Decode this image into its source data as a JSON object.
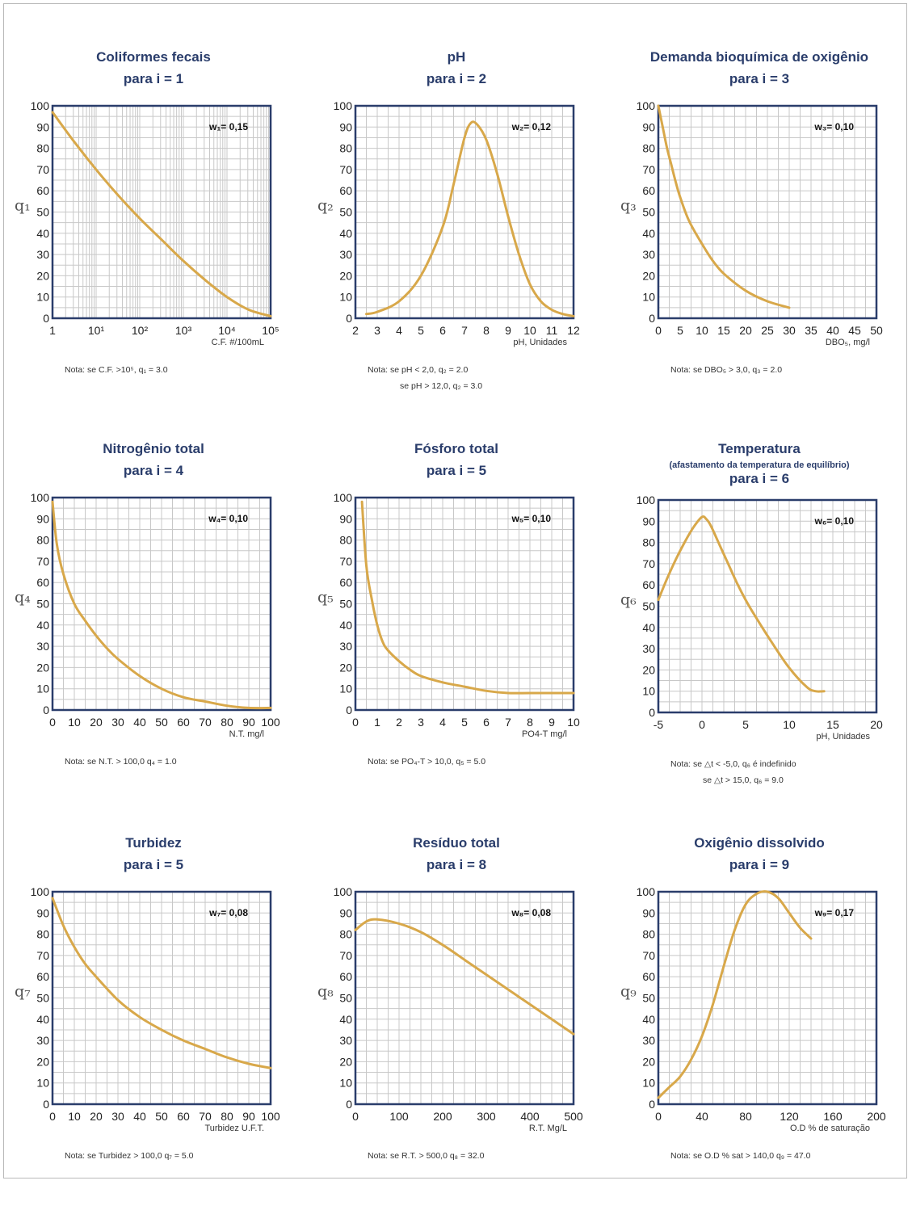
{
  "colors": {
    "curve": "#d8a84a",
    "frame": "#2a3d6b",
    "grid": "#c8c8c8",
    "title": "#2a3d6b"
  },
  "charts": [
    {
      "id": "p1",
      "title": "Coliformes fecais",
      "title2": "para i = 1",
      "subtitle": "",
      "weight": "w₁= 0,15",
      "ylabel": "q₁",
      "xlabel": "C.F. #/100mL",
      "notes": [
        "Nota: se C.F. >10⁵, q₁ = 3.0"
      ],
      "yticks": [
        "0",
        "10",
        "20",
        "30",
        "40",
        "50",
        "60",
        "70",
        "80",
        "90",
        "100"
      ],
      "xticks": [
        "1",
        "10¹",
        "10²",
        "10³",
        "10⁴",
        "10⁵"
      ]
    },
    {
      "id": "p2",
      "title": "pH",
      "title2": "para i = 2",
      "subtitle": "",
      "weight": "w₂= 0,12",
      "ylabel": "q₂",
      "xlabel": "pH, Unidades",
      "notes": [
        "Nota: se pH < 2,0, q₂ = 2.0",
        "se pH > 12,0, q₂ = 3.0"
      ],
      "yticks": [
        "0",
        "10",
        "20",
        "30",
        "40",
        "50",
        "60",
        "70",
        "80",
        "90",
        "100"
      ],
      "xticks": [
        "2",
        "3",
        "4",
        "5",
        "6",
        "7",
        "8",
        "9",
        "10",
        "11",
        "12"
      ]
    },
    {
      "id": "p3",
      "title": "Demanda bioquímica de oxigênio",
      "title2": "para i = 3",
      "subtitle": "",
      "weight": "w₃= 0,10",
      "ylabel": "q₃",
      "xlabel": "DBO₅, mg/l",
      "notes": [
        "Nota: se DBO₅ > 3,0, q₃ = 2.0"
      ],
      "yticks": [
        "0",
        "10",
        "20",
        "30",
        "40",
        "50",
        "60",
        "70",
        "80",
        "90",
        "100"
      ],
      "xticks": [
        "0",
        "5",
        "10",
        "15",
        "20",
        "25",
        "30",
        "35",
        "40",
        "45",
        "50"
      ]
    },
    {
      "id": "p4",
      "title": "Nitrogênio total",
      "title2": "para i = 4",
      "subtitle": "",
      "weight": "w₄= 0,10",
      "ylabel": "q₄",
      "xlabel": "N.T. mg/l",
      "notes": [
        "Nota: se N.T. > 100,0  q₄ = 1.0"
      ],
      "yticks": [
        "0",
        "10",
        "20",
        "30",
        "40",
        "50",
        "60",
        "70",
        "80",
        "90",
        "100"
      ],
      "xticks": [
        "0",
        "10",
        "20",
        "30",
        "40",
        "50",
        "60",
        "70",
        "80",
        "90",
        "100"
      ]
    },
    {
      "id": "p5",
      "title": "Fósforo total",
      "title2": "para i = 5",
      "subtitle": "",
      "weight": "w₅= 0,10",
      "ylabel": "q₅",
      "xlabel": "PO4-T mg/l",
      "notes": [
        "Nota: se PO₄-T > 10,0, q₅ = 5.0"
      ],
      "yticks": [
        "0",
        "10",
        "20",
        "30",
        "40",
        "50",
        "60",
        "70",
        "80",
        "90",
        "100"
      ],
      "xticks": [
        "0",
        "1",
        "2",
        "3",
        "4",
        "5",
        "6",
        "7",
        "8",
        "9",
        "10"
      ]
    },
    {
      "id": "p6",
      "title": "Temperatura",
      "title2": "para i = 6",
      "subtitle": "(afastamento da temperatura de equilíbrio)",
      "weight": "w₆= 0,10",
      "ylabel": "q₆",
      "xlabel": "pH, Unidades",
      "notes": [
        "Nota: se △t < -5,0, q₆ é indefinido",
        "se △t > 15,0, q₆ = 9.0"
      ],
      "yticks": [
        "0",
        "10",
        "20",
        "30",
        "40",
        "50",
        "60",
        "70",
        "80",
        "90",
        "100"
      ],
      "xticks": [
        "-5",
        "0",
        "5",
        "10",
        "15",
        "20"
      ]
    },
    {
      "id": "p7",
      "title": "Turbidez",
      "title2": "para i = 5",
      "subtitle": "",
      "weight": "w₇= 0,08",
      "ylabel": "q₇",
      "xlabel": "Turbidez U.F.T.",
      "notes": [
        "Nota: se Turbidez > 100,0  q₇ = 5.0"
      ],
      "yticks": [
        "0",
        "10",
        "20",
        "30",
        "40",
        "50",
        "60",
        "70",
        "80",
        "90",
        "100"
      ],
      "xticks": [
        "0",
        "10",
        "20",
        "30",
        "40",
        "50",
        "60",
        "70",
        "80",
        "90",
        "100"
      ]
    },
    {
      "id": "p8",
      "title": "Resíduo total",
      "title2": "para i = 8",
      "subtitle": "",
      "weight": "w₈= 0,08",
      "ylabel": "q₈",
      "xlabel": "R.T. Mg/L",
      "notes": [
        "Nota: se R.T. > 500,0  q₈ = 32.0"
      ],
      "yticks": [
        "0",
        "10",
        "20",
        "30",
        "40",
        "50",
        "60",
        "70",
        "80",
        "90",
        "100"
      ],
      "xticks": [
        "0",
        "100",
        "200",
        "300",
        "400",
        "500"
      ]
    },
    {
      "id": "p9",
      "title": "Oxigênio dissolvido",
      "title2": "para i = 9",
      "subtitle": "",
      "weight": "w₉= 0,17",
      "ylabel": "q₉",
      "xlabel": "O.D % de saturação",
      "notes": [
        "Nota: se O.D % sat > 140,0  q₉ = 47.0"
      ],
      "yticks": [
        "0",
        "10",
        "20",
        "30",
        "40",
        "50",
        "60",
        "70",
        "80",
        "90",
        "100"
      ],
      "xticks": [
        "0",
        "40",
        "80",
        "120",
        "160",
        "200"
      ]
    }
  ],
  "chart_data": [
    {
      "type": "line",
      "title": "Coliformes fecais para i = 1",
      "xlabel": "C.F. #/100mL",
      "ylabel": "q1",
      "xscale": "log",
      "xlim": [
        1,
        100000
      ],
      "ylim": [
        0,
        100
      ],
      "grid": true,
      "series": [
        {
          "x": [
            1,
            3.16,
            10,
            31.6,
            100,
            316,
            1000,
            3162,
            10000,
            31623,
            100000
          ],
          "y": [
            97,
            83,
            70,
            58,
            47,
            37,
            27,
            18,
            10,
            4,
            1
          ]
        }
      ]
    },
    {
      "type": "line",
      "title": "pH para i = 2",
      "xlabel": "pH, Unidades",
      "ylabel": "q2",
      "xlim": [
        2,
        12
      ],
      "ylim": [
        0,
        100
      ],
      "grid": true,
      "series": [
        {
          "x": [
            2.5,
            3,
            4,
            5,
            6,
            6.5,
            7,
            7.3,
            7.6,
            8,
            8.5,
            9,
            9.5,
            10,
            10.5,
            11,
            11.5,
            12
          ],
          "y": [
            2,
            3,
            8,
            20,
            43,
            63,
            85,
            92,
            91,
            84,
            68,
            48,
            30,
            16,
            8,
            4,
            2,
            1
          ]
        }
      ]
    },
    {
      "type": "line",
      "title": "Demanda bioquímica de oxigênio para i = 3",
      "xlabel": "DBO5, mg/l",
      "ylabel": "q3",
      "xlim": [
        0,
        50
      ],
      "ylim": [
        0,
        100
      ],
      "grid": true,
      "series": [
        {
          "x": [
            0,
            1,
            2,
            3,
            4,
            5,
            7,
            10,
            12.5,
            15,
            20,
            25,
            30
          ],
          "y": [
            100,
            90,
            80,
            72,
            64,
            57,
            46,
            35,
            27,
            21,
            13,
            8,
            5
          ]
        }
      ]
    },
    {
      "type": "line",
      "title": "Nitrogênio total para i = 4",
      "xlabel": "N.T. mg/l",
      "ylabel": "q4",
      "xlim": [
        0,
        100
      ],
      "ylim": [
        0,
        100
      ],
      "grid": true,
      "series": [
        {
          "x": [
            0,
            2,
            5,
            10,
            15,
            20,
            25,
            30,
            40,
            50,
            60,
            70,
            80,
            90,
            100
          ],
          "y": [
            98,
            78,
            64,
            50,
            42,
            35,
            29,
            24,
            16,
            10,
            6,
            4,
            2,
            1,
            1
          ]
        }
      ]
    },
    {
      "type": "line",
      "title": "Fósforo total para i = 5",
      "xlabel": "PO4-T mg/l",
      "ylabel": "q5",
      "xlim": [
        0,
        10
      ],
      "ylim": [
        0,
        100
      ],
      "grid": true,
      "series": [
        {
          "x": [
            0.3,
            0.5,
            0.75,
            1,
            1.25,
            1.5,
            2,
            2.5,
            3,
            4,
            5,
            6,
            7,
            8,
            9,
            10
          ],
          "y": [
            98,
            68,
            52,
            40,
            32,
            28,
            23,
            19,
            16,
            13,
            11,
            9,
            8,
            8,
            8,
            8
          ]
        }
      ]
    },
    {
      "type": "line",
      "title": "Temperatura para i = 6",
      "xlabel": "pH, Unidades",
      "ylabel": "q6",
      "xlim": [
        -5,
        20
      ],
      "ylim": [
        0,
        100
      ],
      "grid": true,
      "series": [
        {
          "x": [
            -5,
            -4,
            -3,
            -2,
            -1,
            0,
            0.5,
            1,
            2,
            3,
            4,
            5,
            6,
            8,
            10,
            12,
            13,
            14
          ],
          "y": [
            53,
            63,
            72,
            80,
            87,
            92,
            91,
            88,
            79,
            70,
            61,
            53,
            46,
            33,
            21,
            12,
            10,
            10
          ]
        }
      ]
    },
    {
      "type": "line",
      "title": "Turbidez para i = 5",
      "xlabel": "Turbidez U.F.T.",
      "ylabel": "q7",
      "xlim": [
        0,
        100
      ],
      "ylim": [
        0,
        100
      ],
      "grid": true,
      "series": [
        {
          "x": [
            0,
            5,
            10,
            15,
            20,
            30,
            40,
            50,
            60,
            70,
            80,
            90,
            100
          ],
          "y": [
            97,
            84,
            74,
            66,
            60,
            49,
            41,
            35,
            30,
            26,
            22,
            19,
            17
          ]
        }
      ]
    },
    {
      "type": "line",
      "title": "Resíduo total para i = 8",
      "xlabel": "R.T. Mg/L",
      "ylabel": "q8",
      "xlim": [
        0,
        500
      ],
      "ylim": [
        0,
        100
      ],
      "grid": true,
      "series": [
        {
          "x": [
            0,
            25,
            50,
            100,
            150,
            200,
            250,
            300,
            350,
            400,
            450,
            500
          ],
          "y": [
            82,
            86,
            87,
            85,
            81,
            75,
            68,
            61,
            54,
            47,
            40,
            33
          ]
        }
      ]
    },
    {
      "type": "line",
      "title": "Oxigênio dissolvido para i = 9",
      "xlabel": "O.D % de saturação",
      "ylabel": "q9",
      "xlim": [
        0,
        200
      ],
      "ylim": [
        0,
        100
      ],
      "grid": true,
      "series": [
        {
          "x": [
            0,
            10,
            20,
            30,
            40,
            50,
            60,
            70,
            80,
            90,
            100,
            110,
            120,
            130,
            140
          ],
          "y": [
            3,
            8,
            13,
            21,
            32,
            47,
            65,
            82,
            94,
            99,
            100,
            97,
            90,
            83,
            78
          ]
        }
      ]
    }
  ]
}
